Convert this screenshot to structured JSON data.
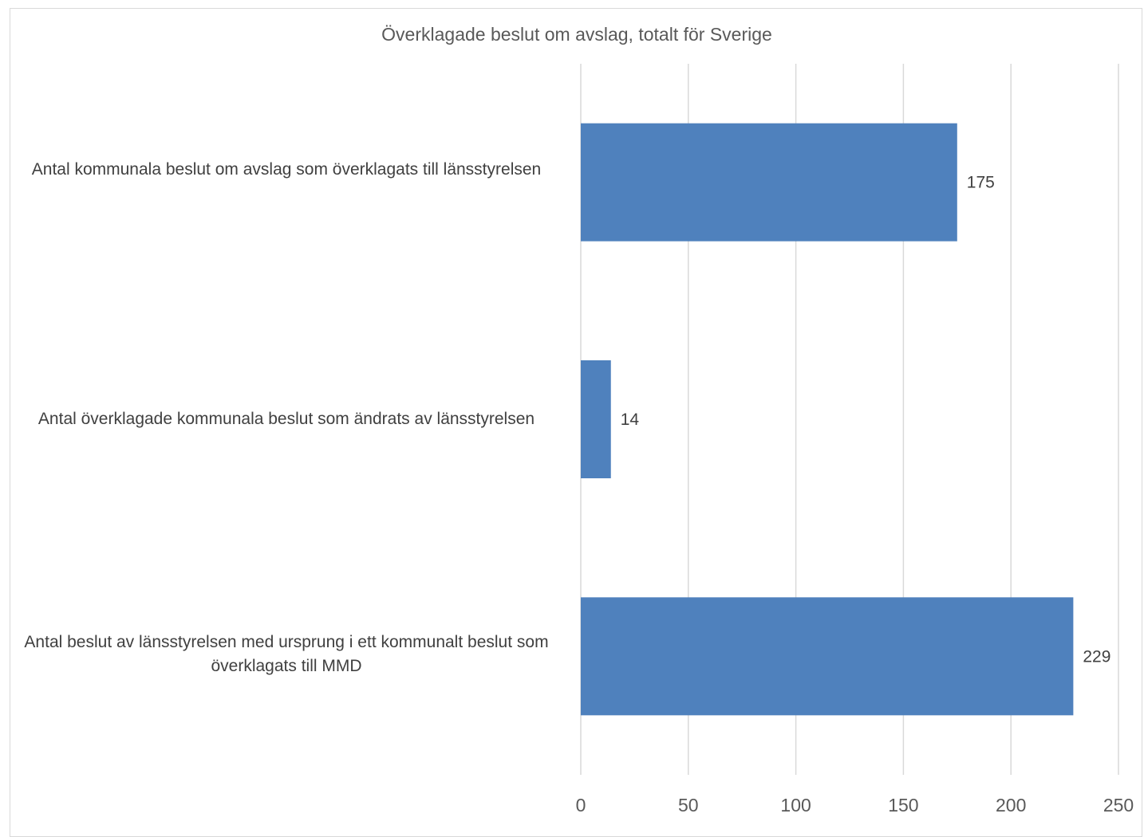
{
  "chart_data": {
    "type": "bar",
    "orientation": "horizontal",
    "title": "Överklagade beslut om avslag, totalt för Sverige",
    "categories": [
      "Antal kommunala beslut om avslag som överklagats till länsstyrelsen",
      "Antal överklagade kommunala beslut som ändrats av länsstyrelsen",
      "Antal beslut av länsstyrelsen med ursprung i ett kommunalt beslut som överklagats till MMD"
    ],
    "values": [
      175,
      14,
      229
    ],
    "data_labels": [
      "175",
      "14",
      "229"
    ],
    "xlim": [
      0,
      250
    ],
    "xticks": [
      "0",
      "50",
      "100",
      "150",
      "200",
      "250"
    ],
    "xlabel": "",
    "ylabel": "",
    "grid": true,
    "legend": "none",
    "colors": {
      "bar": "#4f81bd",
      "grid": "#d9d9d9",
      "text": "#404040"
    }
  }
}
